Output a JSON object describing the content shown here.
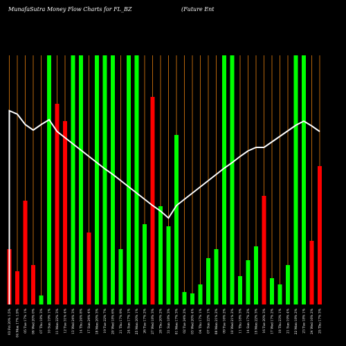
{
  "chart_data": {
    "type": "bar",
    "title": "MunafaSutra Money Flow Charts for FL_BZ",
    "subtitle": "(Future Ent",
    "xlabel": "",
    "ylabel": "",
    "grid": true,
    "legend": "none",
    "colors": {
      "background": "#000000",
      "up": "#00ff00",
      "down": "#ff0000",
      "grid": "#b8660b",
      "line": "#ffffff"
    },
    "categories": [
      "03 Fri 20% 1.5%",
      "04 Mon 17% 1.9%",
      "05 Tue 17% 1%",
      "06 Wed 20% 0%",
      "07 Thu 18% 3%",
      "10 Sun 19% 1%",
      "11 Mon 22% 3%",
      "12 Tue 31% 4%",
      "13 Wed 24% 3%",
      "14 Thu 24% 8%",
      "17 Sun 24% 4%",
      "18 Mon 20% 3%",
      "19 Tue 22% 7%",
      "20 Wed 18% 6%",
      "21 Thu 17% 9%",
      "24 Sun 17% 1%",
      "25 Mon 20% 1%",
      "26 Tue 17% 2%",
      "27 Wed 18% 3%",
      "28 Thu 20% 2%",
      "31 Sun 18% 3%",
      "01 Mon 17% 3%",
      "02 Tue 24% 2%",
      "03 Wed 20% 4%",
      "04 Thu 17% 1%",
      "07 Sun 22% 1%",
      "08 Mon 21% 2%",
      "09 Tue 16% 2%",
      "10 Wed 21% 2%",
      "11 Thu 18% 3%",
      "14 Sun 17% 2%",
      "15 Mon 22% 3%",
      "16 Tue 20% 3%",
      "17 Wed 17% 2%",
      "18 Thu 23% 1%",
      "21 Sun 19% 4%",
      "22 Mon 18% 2%",
      "23 Tue 18% 1%",
      "24 Wed 16% 2%",
      "25 Thu 17% 3%"
    ],
    "values": [
      80,
      48,
      150,
      57,
      13,
      360,
      290,
      265,
      360,
      360,
      104,
      360,
      360,
      360,
      80,
      360,
      360,
      116,
      300,
      142,
      113,
      245,
      18,
      16,
      29,
      67,
      80,
      360,
      360,
      41,
      64,
      84,
      157,
      38,
      29,
      57,
      360,
      360,
      92,
      200
    ],
    "direction": [
      "down",
      "down",
      "down",
      "down",
      "up",
      "up",
      "down",
      "down",
      "up",
      "up",
      "down",
      "up",
      "up",
      "up",
      "up",
      "up",
      "up",
      "up",
      "down",
      "up",
      "up",
      "up",
      "up",
      "up",
      "up",
      "up",
      "up",
      "up",
      "up",
      "up",
      "up",
      "up",
      "down",
      "up",
      "up",
      "up",
      "up",
      "up",
      "down",
      "down"
    ],
    "line_values": [
      280,
      275,
      260,
      252,
      260,
      267,
      250,
      241,
      232,
      223,
      214,
      205,
      196,
      188,
      179,
      170,
      161,
      152,
      143,
      135,
      125,
      143,
      152,
      161,
      170,
      179,
      188,
      197,
      205,
      214,
      222,
      227,
      227,
      235,
      243,
      251,
      259,
      265,
      258,
      250
    ],
    "ylim": [
      0,
      360
    ]
  }
}
